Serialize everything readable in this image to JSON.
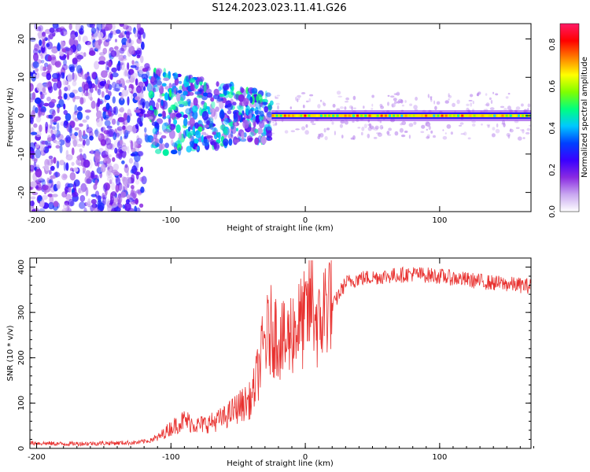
{
  "title": "S124.2023.023.11.41.G26",
  "colors": {
    "snr_line": "#e8312f",
    "axis": "#000000",
    "background": "#ffffff",
    "colormap": [
      "#ffffff",
      "#c9a8f0",
      "#8a2be2",
      "#3a00ff",
      "#0040ff",
      "#00c8ff",
      "#00ff80",
      "#80ff00",
      "#ffff00",
      "#ff8000",
      "#ff0000",
      "#ff1a66"
    ]
  },
  "chart_data": [
    {
      "type": "heatmap",
      "title": "",
      "xlabel": "Height of straight line (km)",
      "ylabel": "Frequency (Hz)",
      "xlim": [
        -205,
        168
      ],
      "ylim": [
        -25,
        24
      ],
      "x_ticks": [
        -200,
        -100,
        0,
        100
      ],
      "x_tick_labels": [
        "-200",
        "-100",
        "0",
        "100"
      ],
      "y_ticks": [
        -20,
        -10,
        0,
        10,
        20
      ],
      "y_tick_labels": [
        "-20",
        "-10",
        "0",
        "10",
        "20"
      ],
      "colorbar": {
        "label": "Normalized spectral amplitude",
        "range": [
          0,
          0.9
        ],
        "ticks": [
          0.0,
          0.2,
          0.4,
          0.6,
          0.8
        ],
        "tick_labels": [
          "0.0",
          "0.2",
          "0.4",
          "0.6",
          "0.8"
        ]
      },
      "features": [
        {
          "region": "noise",
          "x_range": [
            -205,
            -120
          ],
          "freq_range": [
            -25,
            24
          ],
          "amplitude": 0.12
        },
        {
          "region": "scattered_band",
          "x_range": [
            -120,
            -25
          ],
          "freq_range": [
            -10,
            12
          ],
          "amplitude": 0.3
        },
        {
          "region": "carrier_line",
          "x_range": [
            -25,
            168
          ],
          "frequency": 0,
          "amplitude": 0.75
        }
      ]
    },
    {
      "type": "line",
      "title": "",
      "xlabel": "Height of straight line (km)",
      "ylabel": "SNR (10 * v/v)",
      "xlim": [
        -205,
        168
      ],
      "ylim": [
        0,
        420
      ],
      "x_ticks": [
        -200,
        -100,
        0,
        100
      ],
      "x_tick_labels": [
        "-200",
        "-100",
        "0",
        "100"
      ],
      "y_ticks": [
        0,
        100,
        200,
        300,
        400
      ],
      "y_tick_labels": [
        "0",
        "100",
        "200",
        "300",
        "400"
      ],
      "series": [
        {
          "name": "SNR",
          "x": [
            -205,
            -180,
            -160,
            -140,
            -125,
            -110,
            -100,
            -90,
            -80,
            -70,
            -60,
            -50,
            -40,
            -35,
            -30,
            -25,
            -20,
            -15,
            -10,
            -5,
            0,
            5,
            10,
            15,
            20,
            25,
            30,
            40,
            60,
            80,
            100,
            120,
            140,
            160,
            168
          ],
          "values": [
            12,
            10,
            11,
            12,
            13,
            20,
            40,
            55,
            45,
            50,
            60,
            80,
            95,
            150,
            210,
            230,
            220,
            200,
            230,
            240,
            250,
            290,
            230,
            280,
            310,
            340,
            365,
            375,
            380,
            385,
            380,
            372,
            365,
            360,
            358
          ]
        }
      ]
    }
  ]
}
